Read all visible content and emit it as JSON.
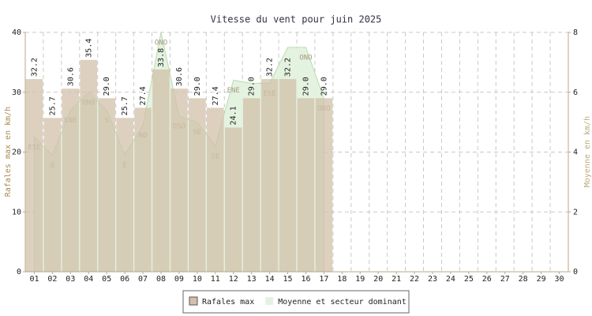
{
  "chart_data": {
    "type": "bar",
    "title": "Vitesse du vent pour juin 2025",
    "ylabel": "Rafales max en km/h",
    "y2label": "Moyenne en km/h",
    "categories": [
      "01",
      "02",
      "03",
      "04",
      "05",
      "06",
      "07",
      "08",
      "09",
      "10",
      "11",
      "12",
      "13",
      "14",
      "15",
      "16",
      "17",
      "18",
      "19",
      "20",
      "21",
      "22",
      "23",
      "24",
      "25",
      "26",
      "27",
      "28",
      "29",
      "30"
    ],
    "series": [
      {
        "name": "Rafales max",
        "type": "bar",
        "color": "#d2c0aa",
        "values": [
          32.2,
          25.7,
          30.6,
          35.4,
          29.0,
          25.7,
          27.4,
          33.8,
          30.6,
          29.0,
          27.4,
          24.1,
          29.0,
          32.2,
          32.2,
          29.0,
          29.0,
          null,
          null,
          null,
          null,
          null,
          null,
          null,
          null,
          null,
          null,
          null,
          null,
          null
        ],
        "value_labels": [
          "32.2",
          "25.7",
          "30.6",
          "35.4",
          "29.0",
          "25.7",
          "27.4",
          "33.8",
          "30.6",
          "29.0",
          "27.4",
          "24.1",
          "29.0",
          "32.2",
          "32.2",
          "29.0",
          "29.0",
          null,
          null,
          null,
          null,
          null,
          null,
          null,
          null,
          null,
          null,
          null,
          null,
          null
        ]
      },
      {
        "name": "Moyenne et secteur dominant",
        "type": "area",
        "axis": "y2",
        "color": "#e4f2e0",
        "values": [
          4.5,
          3.9,
          5.4,
          6.0,
          5.4,
          3.9,
          4.9,
          8.0,
          5.2,
          5.0,
          4.2,
          6.4,
          6.3,
          6.3,
          7.5,
          7.5,
          5.8,
          null,
          null,
          null,
          null,
          null,
          null,
          null,
          null,
          null,
          null,
          null,
          null,
          null
        ],
        "point_labels": [
          "ESE",
          "O",
          "ENE",
          "ONO",
          "S",
          "E",
          "NO",
          "ONO",
          "OSO",
          "SE",
          "SE",
          "ENE",
          null,
          "ESE",
          null,
          "ONO",
          "ONO",
          null,
          null,
          null,
          null,
          null,
          null,
          null,
          null,
          null,
          null,
          null,
          null,
          null
        ]
      }
    ],
    "ylim": [
      0,
      40
    ],
    "yticks": [
      0,
      10,
      20,
      30,
      40
    ],
    "y2lim": [
      0,
      8
    ],
    "y2ticks": [
      0,
      2,
      4,
      6,
      8
    ],
    "grid": true,
    "legend": "bottom"
  }
}
